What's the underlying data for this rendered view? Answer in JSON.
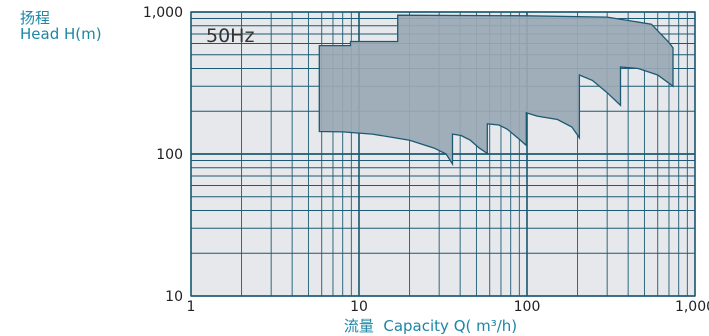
{
  "chart_data": {
    "type": "area",
    "title": "",
    "annotation": "50Hz",
    "ylabel_cn": "扬程",
    "ylabel_en": "Head H(m)",
    "xlabel_cn": "流量",
    "xlabel_en": "Capacity Q( m³/h)",
    "x_scale": "log",
    "y_scale": "log",
    "xlim": [
      1,
      1000
    ],
    "ylim": [
      10,
      1000
    ],
    "x_ticks": [
      {
        "value": 1,
        "label": "1"
      },
      {
        "value": 10,
        "label": "10"
      },
      {
        "value": 100,
        "label": "100"
      },
      {
        "value": 1000,
        "label": "1,000"
      }
    ],
    "y_ticks": [
      {
        "value": 10,
        "label": "10"
      },
      {
        "value": 100,
        "label": "100"
      },
      {
        "value": 1000,
        "label": "1,000"
      }
    ],
    "grid": true,
    "series": [
      {
        "values": [
          [
            5.8,
            580
          ],
          [
            8.9,
            580
          ],
          [
            8.9,
            620
          ],
          [
            17,
            620
          ],
          [
            17,
            950
          ],
          [
            100,
            940
          ],
          [
            300,
            920
          ],
          [
            550,
            820
          ],
          [
            700,
            610
          ],
          [
            740,
            560
          ],
          [
            740,
            300
          ],
          [
            600,
            360
          ],
          [
            460,
            400
          ],
          [
            360,
            410
          ],
          [
            360,
            220
          ],
          [
            300,
            270
          ],
          [
            245,
            330
          ],
          [
            205,
            360
          ],
          [
            205,
            130
          ],
          [
            185,
            155
          ],
          [
            152,
            175
          ],
          [
            115,
            185
          ],
          [
            99,
            195
          ],
          [
            99,
            115
          ],
          [
            90,
            127
          ],
          [
            76,
            150
          ],
          [
            68,
            160
          ],
          [
            58,
            163
          ],
          [
            58,
            101
          ],
          [
            52,
            110
          ],
          [
            46,
            125
          ],
          [
            40.5,
            135
          ],
          [
            36,
            138
          ],
          [
            36,
            85
          ],
          [
            33,
            100
          ],
          [
            28,
            110
          ],
          [
            20,
            125
          ],
          [
            12,
            138
          ],
          [
            8,
            143
          ],
          [
            5.8,
            144
          ]
        ]
      }
    ]
  },
  "colors": {
    "background": "#e6e8eb",
    "grid": "#1c5a73",
    "fill": "#9aa8b5",
    "fill_stroke": "#1c5a73",
    "text": "#222222",
    "label": "#1c86a6"
  }
}
